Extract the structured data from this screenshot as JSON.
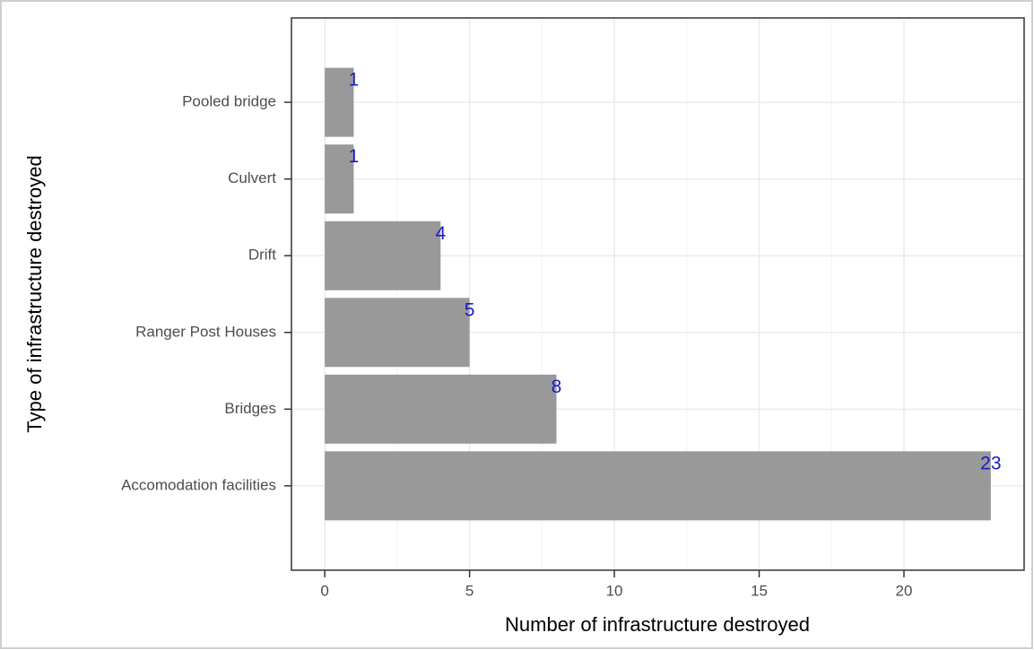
{
  "chart_data": {
    "type": "bar",
    "orientation": "horizontal",
    "x_label": "Number of infrastructure destroyed",
    "y_label": "Type of infrastructure destroyed",
    "categories": [
      "Pooled bridge",
      "Culvert",
      "Drift",
      "Ranger Post Houses",
      "Bridges",
      "Accomodation facilities"
    ],
    "values": [
      1,
      1,
      4,
      5,
      8,
      23
    ],
    "color": "#999999",
    "label_color": "#1a1acc",
    "xlim": [
      -1.15,
      24.15
    ],
    "xticks": [
      0,
      5,
      10,
      15,
      20
    ],
    "grid": true
  }
}
